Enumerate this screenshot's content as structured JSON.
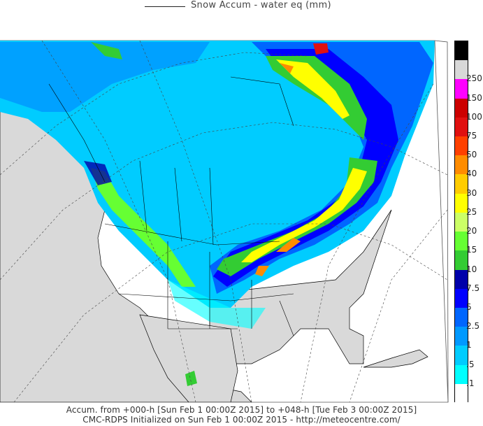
{
  "title": "Snow Accum - water eq (mm)",
  "legend": {
    "bins": [
      {
        "label": "",
        "color": "#000000"
      },
      {
        "label": "250",
        "color": "#d8d8d8"
      },
      {
        "label": "150",
        "color": "#ff00ff"
      },
      {
        "label": "100",
        "color": "#cc0000"
      },
      {
        "label": "75",
        "color": "#e01010"
      },
      {
        "label": "50",
        "color": "#ff4000"
      },
      {
        "label": "40",
        "color": "#ff8c00"
      },
      {
        "label": "30",
        "color": "#ffcc00"
      },
      {
        "label": "25",
        "color": "#ffff00"
      },
      {
        "label": "20",
        "color": "#ccff66"
      },
      {
        "label": "15",
        "color": "#66ff33"
      },
      {
        "label": "10",
        "color": "#33cc33"
      },
      {
        "label": "7.5",
        "color": "#0000aa"
      },
      {
        "label": "5",
        "color": "#0000ff"
      },
      {
        "label": "2.5",
        "color": "#0066ff"
      },
      {
        "label": "1",
        "color": "#0099ff"
      },
      {
        "label": ".5",
        "color": "#00ccff"
      },
      {
        "label": ".1",
        "color": "#00ffff"
      },
      {
        "label": "",
        "color": "#ffffff"
      }
    ]
  },
  "footer": {
    "line1": "Accum. from +000-h [Sun Feb 1 00:00Z 2015] to +048-h [Tue Feb 3 00:00Z 2015]",
    "line2": "CMC-RDPS Initialized on Sun Feb 1 00:00Z 2015 - http://meteocentre.com/"
  },
  "colors": {
    "land": "#d9d9d9",
    "outline": "#000000",
    "grid": "#444444"
  }
}
